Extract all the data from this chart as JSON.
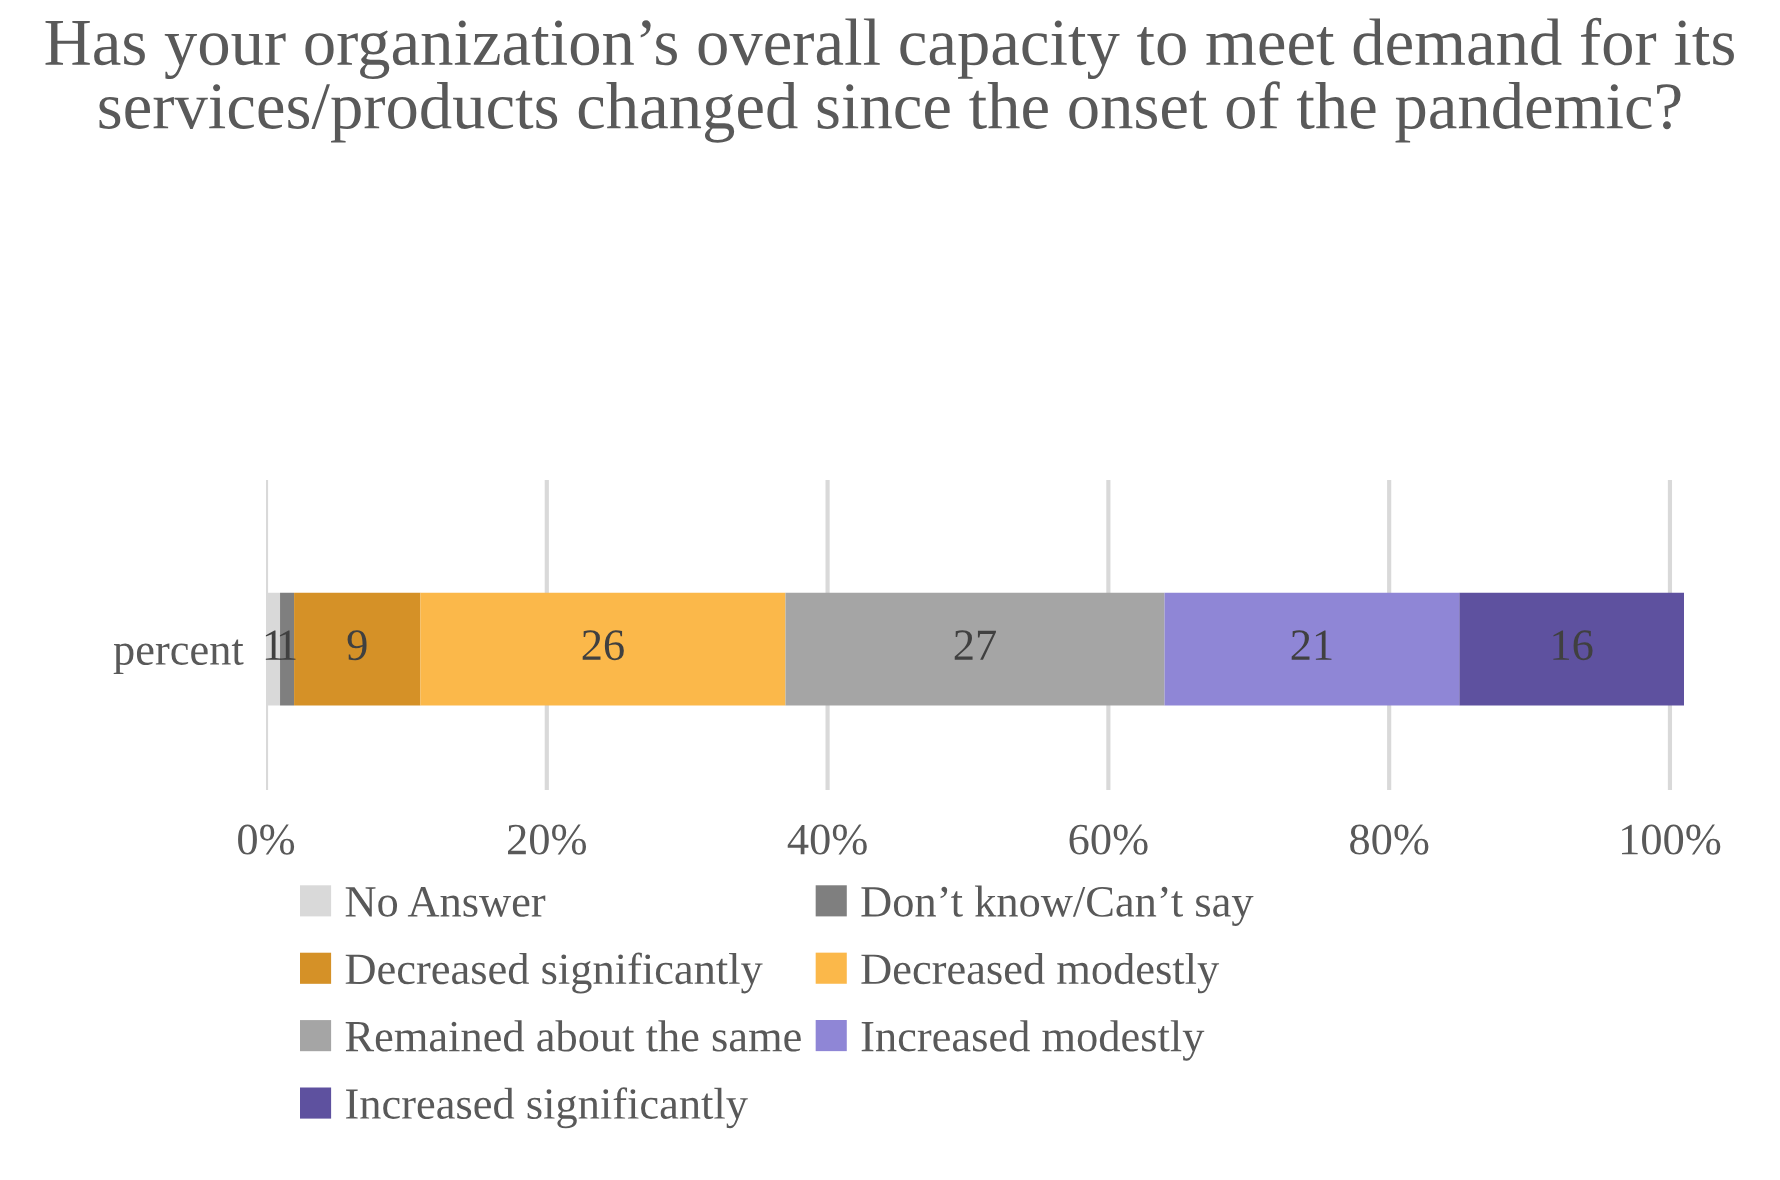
{
  "chart_data": {
    "type": "bar",
    "orientation": "horizontal",
    "stacked": true,
    "title": "Has your organization’s overall capacity to meet demand for its services/products changed since the onset of the pandemic?",
    "categories": [
      "percent"
    ],
    "series": [
      {
        "name": "No Answer",
        "color": "#d9d9d9",
        "values": [
          1
        ]
      },
      {
        "name": "Don’t know/Can’t say",
        "color": "#7f7f7f",
        "values": [
          1
        ]
      },
      {
        "name": "Decreased significantly",
        "color": "#d59127",
        "values": [
          9
        ]
      },
      {
        "name": "Decreased modestly",
        "color": "#fbb84a",
        "values": [
          26
        ]
      },
      {
        "name": "Remained about the same",
        "color": "#a5a5a5",
        "values": [
          27
        ]
      },
      {
        "name": "Increased modestly",
        "color": "#8f86d6",
        "values": [
          21
        ]
      },
      {
        "name": "Increased significantly",
        "color": "#5e519f",
        "values": [
          16
        ]
      }
    ],
    "xlim": [
      0,
      101
    ],
    "xticks": [
      {
        "value": 0,
        "label": "0%"
      },
      {
        "value": 20,
        "label": "20%"
      },
      {
        "value": 40,
        "label": "40%"
      },
      {
        "value": 60,
        "label": "60%"
      },
      {
        "value": 80,
        "label": "80%"
      },
      {
        "value": 100,
        "label": "100%"
      }
    ],
    "data_labels": true,
    "grid": "x",
    "legend": "bottom"
  }
}
